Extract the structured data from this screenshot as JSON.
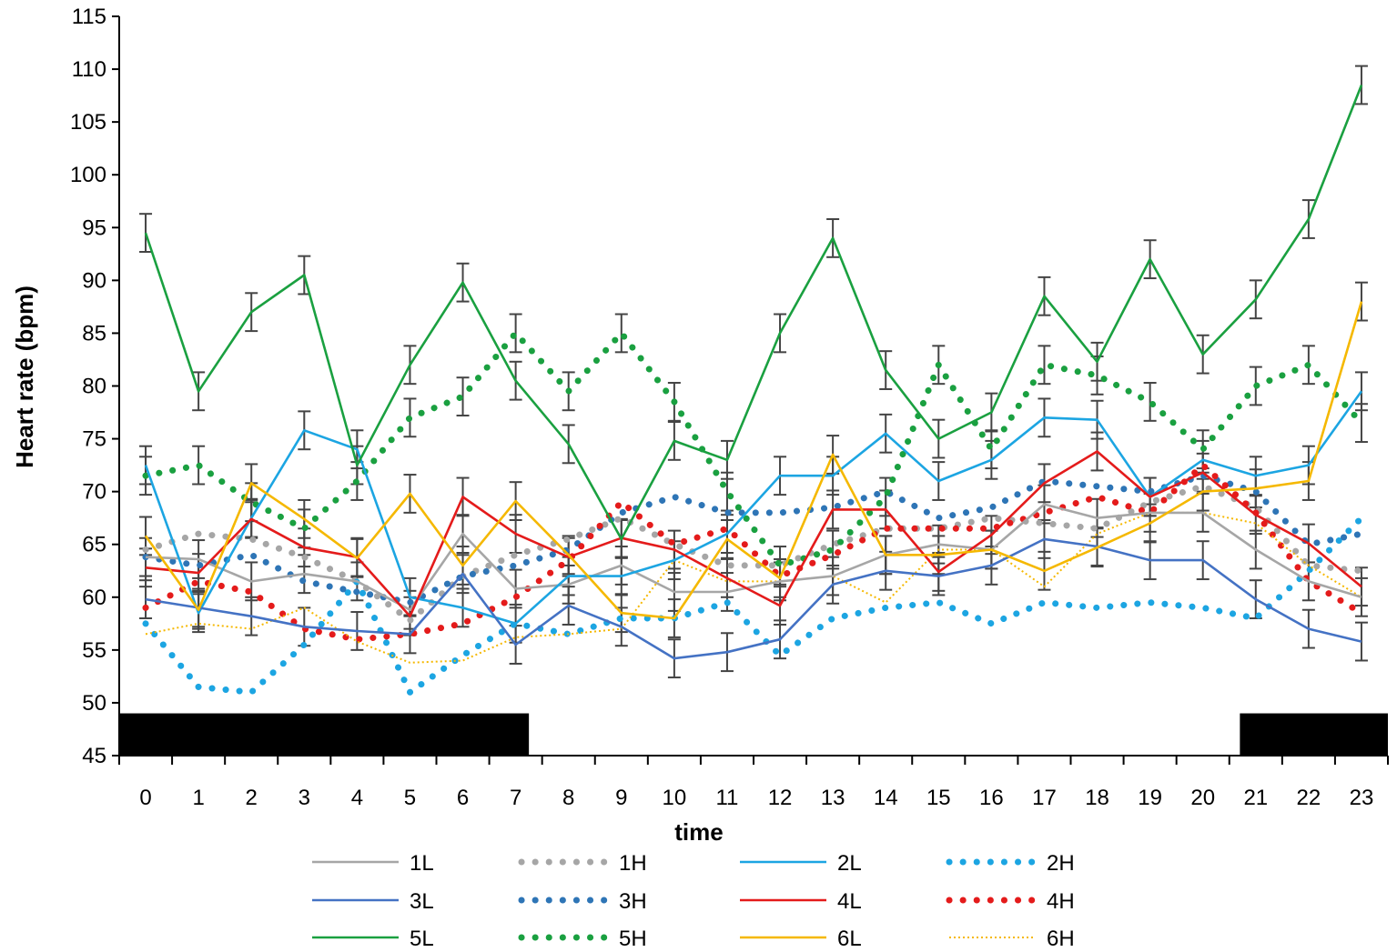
{
  "chart_data": {
    "type": "line",
    "title": "",
    "xlabel": "time",
    "ylabel": "Heart rate (bpm)",
    "x": [
      0,
      1,
      2,
      3,
      4,
      5,
      6,
      7,
      8,
      9,
      10,
      11,
      12,
      13,
      14,
      15,
      16,
      17,
      18,
      19,
      20,
      21,
      22,
      23
    ],
    "x_tick_labels": [
      "0",
      "1",
      "2",
      "3",
      "4",
      "5",
      "6",
      "7",
      "8",
      "9",
      "10",
      "11",
      "12",
      "13",
      "14",
      "15",
      "16",
      "17",
      "18",
      "19",
      "20",
      "21",
      "22",
      "23"
    ],
    "ylim": [
      45,
      115
    ],
    "y_ticks": [
      45,
      50,
      55,
      60,
      65,
      70,
      75,
      80,
      85,
      90,
      95,
      100,
      105,
      110,
      115
    ],
    "y_tick_labels": [
      "45",
      "50",
      "55",
      "60",
      "65",
      "70",
      "75",
      "80",
      "85",
      "90",
      "95",
      "100",
      "105",
      "110",
      "115"
    ],
    "grid": false,
    "legend_position": "bottom",
    "dark_period_bars": [
      {
        "from": -0.5,
        "to": 7.25,
        "y_from": 45,
        "y_to": 49
      },
      {
        "from": 20.7,
        "to": 23.5,
        "y_from": 45,
        "y_to": 49
      }
    ],
    "series": [
      {
        "name": "1L",
        "color": "#a6a6a6",
        "style": "solid",
        "values": [
          63.8,
          63.6,
          61.5,
          62.2,
          61.5,
          58.8,
          66,
          60.8,
          61.2,
          63,
          60.5,
          60.5,
          61.5,
          62,
          64,
          65,
          64.5,
          68.8,
          67.5,
          68,
          68,
          64.5,
          61.5,
          60
        ]
      },
      {
        "name": "1H",
        "color": "#a6a6a6",
        "style": "dotted",
        "values": [
          64.5,
          66,
          65.5,
          63.8,
          61.5,
          57.8,
          62,
          64,
          65.5,
          67.5,
          65,
          63,
          63,
          65,
          66.5,
          66.5,
          67.5,
          67,
          66.5,
          69,
          70.5,
          68.5,
          63,
          62.5
        ]
      },
      {
        "name": "2L",
        "color": "#1ca5e2",
        "style": "solid",
        "values": [
          72.5,
          58.5,
          67.5,
          75.8,
          74,
          60,
          59,
          57.5,
          62,
          62,
          63.5,
          66,
          71.5,
          71.5,
          75.5,
          71,
          73,
          77,
          76.8,
          69.5,
          73,
          71.5,
          72.5,
          79.5
        ]
      },
      {
        "name": "2H",
        "color": "#1ca5e2",
        "style": "dotted",
        "values": [
          57.5,
          51.5,
          51,
          55.5,
          61.5,
          51,
          54.5,
          57.5,
          56.5,
          58,
          58,
          59.5,
          54.5,
          58,
          59,
          59.5,
          57.5,
          59.5,
          59,
          59.5,
          59,
          58,
          62.5,
          67.5
        ]
      },
      {
        "name": "3L",
        "color": "#4472c4",
        "style": "solid",
        "values": [
          59.8,
          59,
          58.2,
          57.2,
          56.8,
          56.5,
          62.2,
          55.5,
          59.2,
          57.2,
          54.2,
          54.8,
          56,
          61.2,
          62.5,
          62,
          63,
          65.5,
          64.8,
          63.5,
          63.5,
          59.8,
          57,
          55.8
        ]
      },
      {
        "name": "3H",
        "color": "#2e75b6",
        "style": "dotted",
        "values": [
          63.8,
          63,
          64,
          61.5,
          60.5,
          59.5,
          62,
          63,
          64.5,
          68,
          69.5,
          68,
          68,
          68.5,
          70,
          67.5,
          68.5,
          71,
          70.5,
          70,
          71.5,
          70,
          65,
          66
        ]
      },
      {
        "name": "4L",
        "color": "#e41b1b",
        "style": "solid",
        "values": [
          62.8,
          62.3,
          67.4,
          64.7,
          63.8,
          58.2,
          69.5,
          66,
          63.8,
          65.6,
          64.5,
          61.8,
          59.2,
          68.3,
          68.3,
          62.4,
          65.9,
          70.8,
          73.8,
          69.5,
          71.8,
          67.8,
          65.1,
          61
        ]
      },
      {
        "name": "4H",
        "color": "#e41b1b",
        "style": "dotted",
        "values": [
          59,
          61.5,
          60.5,
          57,
          56,
          56.5,
          57.5,
          60,
          63.5,
          69,
          65,
          66.5,
          62,
          64,
          66.5,
          66.5,
          66.5,
          68,
          69.5,
          68,
          72.5,
          68,
          61.5,
          58.5
        ]
      },
      {
        "name": "5L",
        "color": "#1aa040",
        "style": "solid",
        "values": [
          94.5,
          79.5,
          87,
          90.5,
          72.5,
          82,
          89.8,
          80.5,
          74.5,
          65.5,
          74.8,
          73,
          85,
          94,
          81.5,
          75,
          77.5,
          88.5,
          82.3,
          92,
          83,
          88.2,
          95.8,
          108.5
        ]
      },
      {
        "name": "5H",
        "color": "#1aa040",
        "style": "dotted",
        "values": [
          71.5,
          72.5,
          69,
          66.5,
          71,
          77,
          79,
          85,
          79.5,
          85,
          78.5,
          70,
          63,
          64.5,
          69.5,
          82,
          74,
          82,
          81,
          78.5,
          74,
          80,
          82,
          76.5
        ]
      },
      {
        "name": "6L",
        "color": "#f5b800",
        "style": "solid",
        "values": [
          65.8,
          58.8,
          70.8,
          67.4,
          63.7,
          69.8,
          63,
          69.1,
          64,
          58.5,
          58,
          65.5,
          61.8,
          73.5,
          64,
          64,
          64.5,
          62.5,
          64.7,
          67,
          70,
          70.3,
          71,
          88
        ]
      },
      {
        "name": "6H",
        "color": "#f5b800",
        "style": "thin-dotted",
        "values": [
          56.5,
          57.5,
          57,
          59,
          55.8,
          53.8,
          54,
          56.2,
          56.5,
          57,
          63.5,
          61.5,
          61.5,
          62,
          59.5,
          64.5,
          64.5,
          61,
          66,
          68,
          68,
          67,
          63,
          60
        ]
      }
    ],
    "error_bar_series": [
      "1L",
      "2L",
      "3L",
      "4L",
      "5L",
      "5H",
      "6L"
    ],
    "error_bar_halfwidth": 1.8
  }
}
